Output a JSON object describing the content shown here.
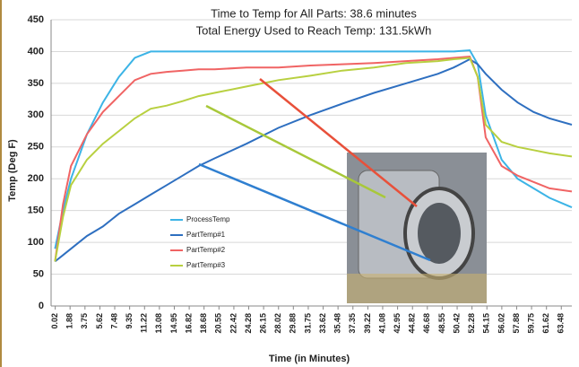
{
  "chart_data": {
    "type": "line",
    "title": "Time to Temp for All Parts: 38.6 minutes",
    "subtitle": "Total Energy Used to Reach Temp: 131.5kWh",
    "x_label": "Time (in Minutes)",
    "y_label": "Temp (Deg F)",
    "x": [
      0,
      1,
      2,
      4,
      6,
      8,
      10,
      12,
      14,
      16,
      18,
      20,
      24,
      28,
      32,
      36,
      40,
      44,
      48,
      50,
      52,
      53,
      54,
      56,
      58,
      60,
      62,
      64.8
    ],
    "series": [
      {
        "name": "ProcessTemp",
        "color": "#3cb4e6",
        "values": [
          90,
          150,
          200,
          270,
          320,
          360,
          390,
          400,
          400,
          400,
          400,
          400,
          400,
          400,
          400,
          400,
          400,
          400,
          400,
          400,
          402,
          380,
          300,
          230,
          200,
          185,
          170,
          155
        ]
      },
      {
        "name": "PartTemp#1",
        "color": "#2e6fc0",
        "values": [
          70,
          80,
          90,
          110,
          125,
          145,
          160,
          175,
          190,
          205,
          220,
          232,
          255,
          280,
          300,
          318,
          335,
          350,
          365,
          375,
          388,
          380,
          365,
          340,
          320,
          305,
          295,
          285
        ]
      },
      {
        "name": "PartTemp#2",
        "color": "#f06464",
        "values": [
          70,
          160,
          220,
          270,
          305,
          330,
          355,
          365,
          368,
          370,
          372,
          372,
          375,
          375,
          378,
          380,
          382,
          385,
          388,
          390,
          392,
          360,
          265,
          220,
          205,
          195,
          185,
          180
        ]
      },
      {
        "name": "PartTemp#3",
        "color": "#b8d040",
        "values": [
          70,
          140,
          190,
          230,
          255,
          275,
          295,
          310,
          315,
          322,
          330,
          335,
          345,
          355,
          362,
          370,
          375,
          382,
          385,
          388,
          390,
          360,
          285,
          258,
          250,
          245,
          240,
          235
        ]
      }
    ],
    "xlim": [
      -0.5,
      64.8
    ],
    "xticks": [
      0.02,
      1.88,
      3.75,
      5.62,
      7.48,
      9.35,
      11.22,
      13.08,
      14.95,
      16.82,
      18.68,
      20.55,
      22.42,
      24.28,
      26.15,
      28.02,
      29.88,
      31.75,
      33.62,
      35.48,
      37.35,
      39.22,
      41.08,
      42.95,
      44.82,
      46.68,
      48.55,
      50.42,
      52.28,
      54.15,
      56.02,
      57.88,
      59.75,
      61.62,
      63.48
    ],
    "ylim": [
      0,
      450
    ],
    "yticks": [
      0,
      50,
      100,
      150,
      200,
      250,
      300,
      350,
      400,
      450
    ],
    "grid": true,
    "legend": "left"
  }
}
